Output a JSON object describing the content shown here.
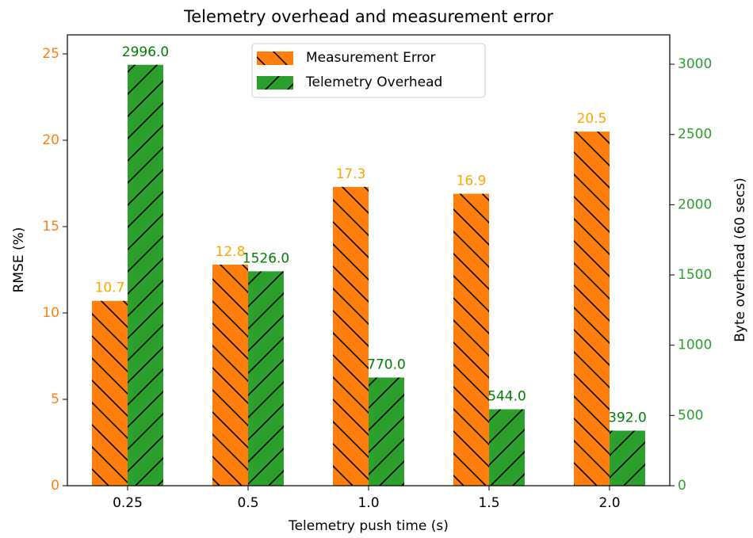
{
  "chart_data": {
    "type": "bar",
    "title": "Telemetry overhead and measurement error",
    "x_label": "Telemetry push time (s)",
    "y_label": "RMSE (%)",
    "y2_label": "Byte overhead (60 secs)",
    "categories": [
      "0.25",
      "0.5",
      "1.0",
      "1.5",
      "2.0"
    ],
    "series": [
      {
        "name": "Measurement Error",
        "color": "#ff7f0e",
        "label_color": "#ffa500",
        "hatch": "\\",
        "values": [
          10.7,
          12.8,
          17.3,
          16.9,
          20.5
        ]
      },
      {
        "name": "Telemetry Overhead",
        "color": "#2ca02c",
        "label_color": "#008000",
        "hatch": "/",
        "axis": "y2",
        "values": [
          2996,
          1526,
          770,
          544,
          392
        ],
        "value_labels": [
          "2996.0",
          "1526.0",
          "770.0",
          "544.0",
          "392.0"
        ]
      }
    ],
    "ylim": [
      0,
      26.1
    ],
    "yticks": [
      0,
      5,
      10,
      15,
      20,
      25
    ],
    "y2lim": [
      0,
      3209
    ],
    "y2ticks": [
      0,
      500,
      1000,
      1500,
      2000,
      2500,
      3000
    ],
    "legend": "upper center"
  }
}
